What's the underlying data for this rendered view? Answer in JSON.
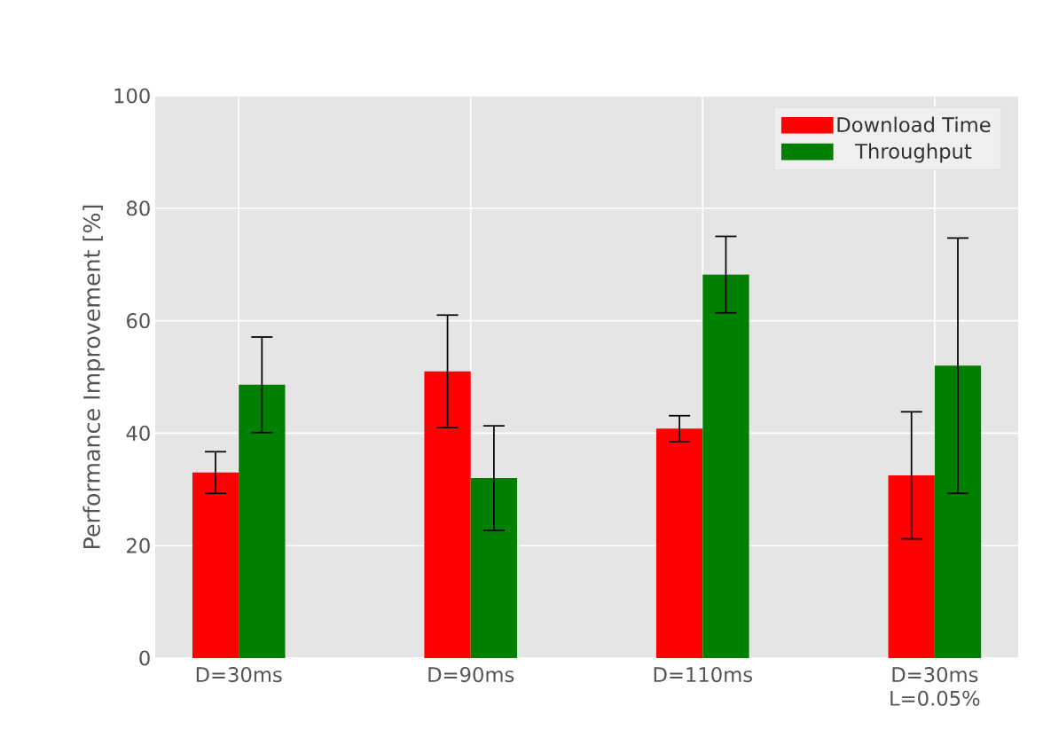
{
  "chart_data": {
    "type": "bar",
    "ylabel": "Performance Improvement [%]",
    "categories": [
      "D=30ms",
      "D=90ms",
      "D=110ms",
      "D=30ms L=0.05%"
    ],
    "series": [
      {
        "name": "Download Time",
        "color": "#ff0000",
        "values": [
          33.0,
          51.0,
          40.8,
          32.5
        ],
        "errors": [
          3.7,
          10.0,
          2.3,
          11.3
        ]
      },
      {
        "name": "Throughput",
        "color": "#008000",
        "values": [
          48.6,
          32.0,
          68.2,
          52.0
        ],
        "errors": [
          8.5,
          9.3,
          6.8,
          22.7
        ]
      }
    ],
    "ylim": [
      0,
      100
    ],
    "yticks": [
      0,
      20,
      40,
      60,
      80,
      100
    ],
    "grid": true,
    "legend": "top right"
  }
}
